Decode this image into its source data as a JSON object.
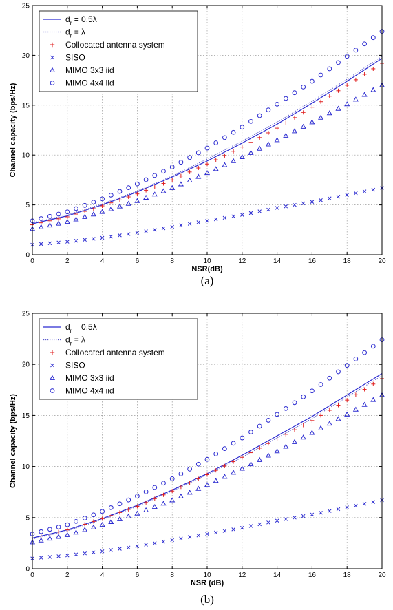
{
  "chart_data": [
    {
      "type": "line",
      "panel_label": "(a)",
      "xlabel": "NSR(dB)",
      "ylabel": "Channel capacity (bps/Hz)",
      "xlim": [
        0,
        20
      ],
      "ylim": [
        0,
        25
      ],
      "x_ticks": [
        "0",
        "2",
        "4",
        "6",
        "8",
        "10",
        "12",
        "14",
        "16",
        "18",
        "20"
      ],
      "y_ticks": [
        "0",
        "5",
        "10",
        "15",
        "20",
        "25"
      ],
      "grid": true,
      "legend_position": "top-left",
      "series": [
        {
          "name": "d_r = 0.5λ",
          "legend_main": "d",
          "legend_sub": "r",
          "legend_rest": " = 0.5λ",
          "style": "solid-line",
          "color": "#2a2ad0",
          "x": [
            0,
            2,
            4,
            6,
            8,
            10,
            12,
            14,
            16,
            18,
            20
          ],
          "y": [
            3.1,
            3.9,
            5.0,
            6.3,
            7.8,
            9.4,
            11.2,
            13.1,
            15.2,
            17.4,
            19.7
          ]
        },
        {
          "name": "d_r = λ",
          "legend_main": "d",
          "legend_sub": "r",
          "legend_rest": " = λ",
          "style": "dotted-line",
          "color": "#5a5acc",
          "x": [
            0,
            2,
            4,
            6,
            8,
            10,
            12,
            14,
            16,
            18,
            20
          ],
          "y": [
            3.2,
            4.0,
            5.1,
            6.4,
            7.9,
            9.6,
            11.4,
            13.3,
            15.4,
            17.6,
            19.9
          ]
        },
        {
          "name": "Collocated antenna system",
          "style": "plus",
          "color": "#e02020",
          "x": [
            0,
            2,
            4,
            6,
            8,
            10,
            12,
            14,
            16,
            18,
            20
          ],
          "y": [
            3.0,
            3.8,
            4.9,
            6.1,
            7.5,
            9.1,
            10.8,
            12.7,
            14.8,
            17.0,
            19.2
          ]
        },
        {
          "name": "SISO",
          "style": "cross",
          "color": "#2a2ad0",
          "x": [
            0,
            2,
            4,
            6,
            8,
            10,
            12,
            14,
            16,
            18,
            20
          ],
          "y": [
            1.0,
            1.3,
            1.7,
            2.2,
            2.8,
            3.4,
            4.0,
            4.7,
            5.3,
            6.0,
            6.7
          ]
        },
        {
          "name": "MIMO 3x3 iid",
          "style": "triangle",
          "color": "#2a2ad0",
          "x": [
            0,
            2,
            4,
            6,
            8,
            10,
            12,
            14,
            16,
            18,
            20
          ],
          "y": [
            2.6,
            3.3,
            4.3,
            5.4,
            6.7,
            8.2,
            9.8,
            11.5,
            13.3,
            15.1,
            17.0
          ]
        },
        {
          "name": "MIMO 4x4 iid",
          "style": "circle",
          "color": "#2a2ad0",
          "x": [
            0,
            2,
            4,
            6,
            8,
            10,
            12,
            14,
            16,
            18,
            20
          ],
          "y": [
            3.4,
            4.3,
            5.6,
            7.1,
            8.8,
            10.7,
            12.8,
            15.1,
            17.4,
            19.9,
            22.4
          ]
        }
      ]
    },
    {
      "type": "line",
      "panel_label": "(b)",
      "xlabel": "NSR (dB)",
      "ylabel": "Channel capacity (bps/Hz)",
      "xlim": [
        0,
        20
      ],
      "ylim": [
        0,
        25
      ],
      "x_ticks": [
        "0",
        "2",
        "4",
        "6",
        "8",
        "10",
        "12",
        "14",
        "16",
        "18",
        "20"
      ],
      "y_ticks": [
        "0",
        "5",
        "10",
        "15",
        "20",
        "25"
      ],
      "grid": true,
      "legend_position": "top-left",
      "series": [
        {
          "name": "d_r = 0.5λ",
          "legend_main": "d",
          "legend_sub": "r",
          "legend_rest": " = 0.5λ",
          "style": "solid-line",
          "color": "#2a2ad0",
          "x": [
            0,
            2,
            4,
            6,
            8,
            10,
            12,
            14,
            16,
            18,
            20
          ],
          "y": [
            3.0,
            3.8,
            4.9,
            6.2,
            7.7,
            9.3,
            11.1,
            13.0,
            14.9,
            17.0,
            19.1
          ]
        },
        {
          "name": "d_r = λ",
          "legend_main": "d",
          "legend_sub": "r",
          "legend_rest": " = λ",
          "style": "dotted-line",
          "color": "#5a5acc",
          "x": [
            0,
            2,
            4,
            6,
            8,
            10,
            12,
            14,
            16,
            18,
            20
          ],
          "y": [
            2.9,
            3.7,
            4.8,
            6.1,
            7.6,
            9.2,
            10.9,
            12.8,
            14.7,
            16.8,
            18.9
          ]
        },
        {
          "name": "Collocated antenna system",
          "style": "plus",
          "color": "#e02020",
          "x": [
            0,
            2,
            4,
            6,
            8,
            10,
            12,
            14,
            16,
            18,
            20
          ],
          "y": [
            3.0,
            3.8,
            4.9,
            6.1,
            7.6,
            9.2,
            10.9,
            12.7,
            14.5,
            16.5,
            18.6
          ]
        },
        {
          "name": "SISO",
          "style": "cross",
          "color": "#2a2ad0",
          "x": [
            0,
            2,
            4,
            6,
            8,
            10,
            12,
            14,
            16,
            18,
            20
          ],
          "y": [
            1.0,
            1.3,
            1.7,
            2.2,
            2.8,
            3.4,
            4.0,
            4.7,
            5.3,
            6.0,
            6.7
          ]
        },
        {
          "name": "MIMO 3x3 iid",
          "style": "triangle",
          "color": "#2a2ad0",
          "x": [
            0,
            2,
            4,
            6,
            8,
            10,
            12,
            14,
            16,
            18,
            20
          ],
          "y": [
            2.6,
            3.3,
            4.3,
            5.4,
            6.7,
            8.2,
            9.8,
            11.5,
            13.3,
            15.1,
            17.0
          ]
        },
        {
          "name": "MIMO 4x4 iid",
          "style": "circle",
          "color": "#2a2ad0",
          "x": [
            0,
            2,
            4,
            6,
            8,
            10,
            12,
            14,
            16,
            18,
            20
          ],
          "y": [
            3.4,
            4.3,
            5.6,
            7.1,
            8.8,
            10.7,
            12.8,
            15.1,
            17.4,
            19.9,
            22.4
          ]
        }
      ]
    }
  ]
}
